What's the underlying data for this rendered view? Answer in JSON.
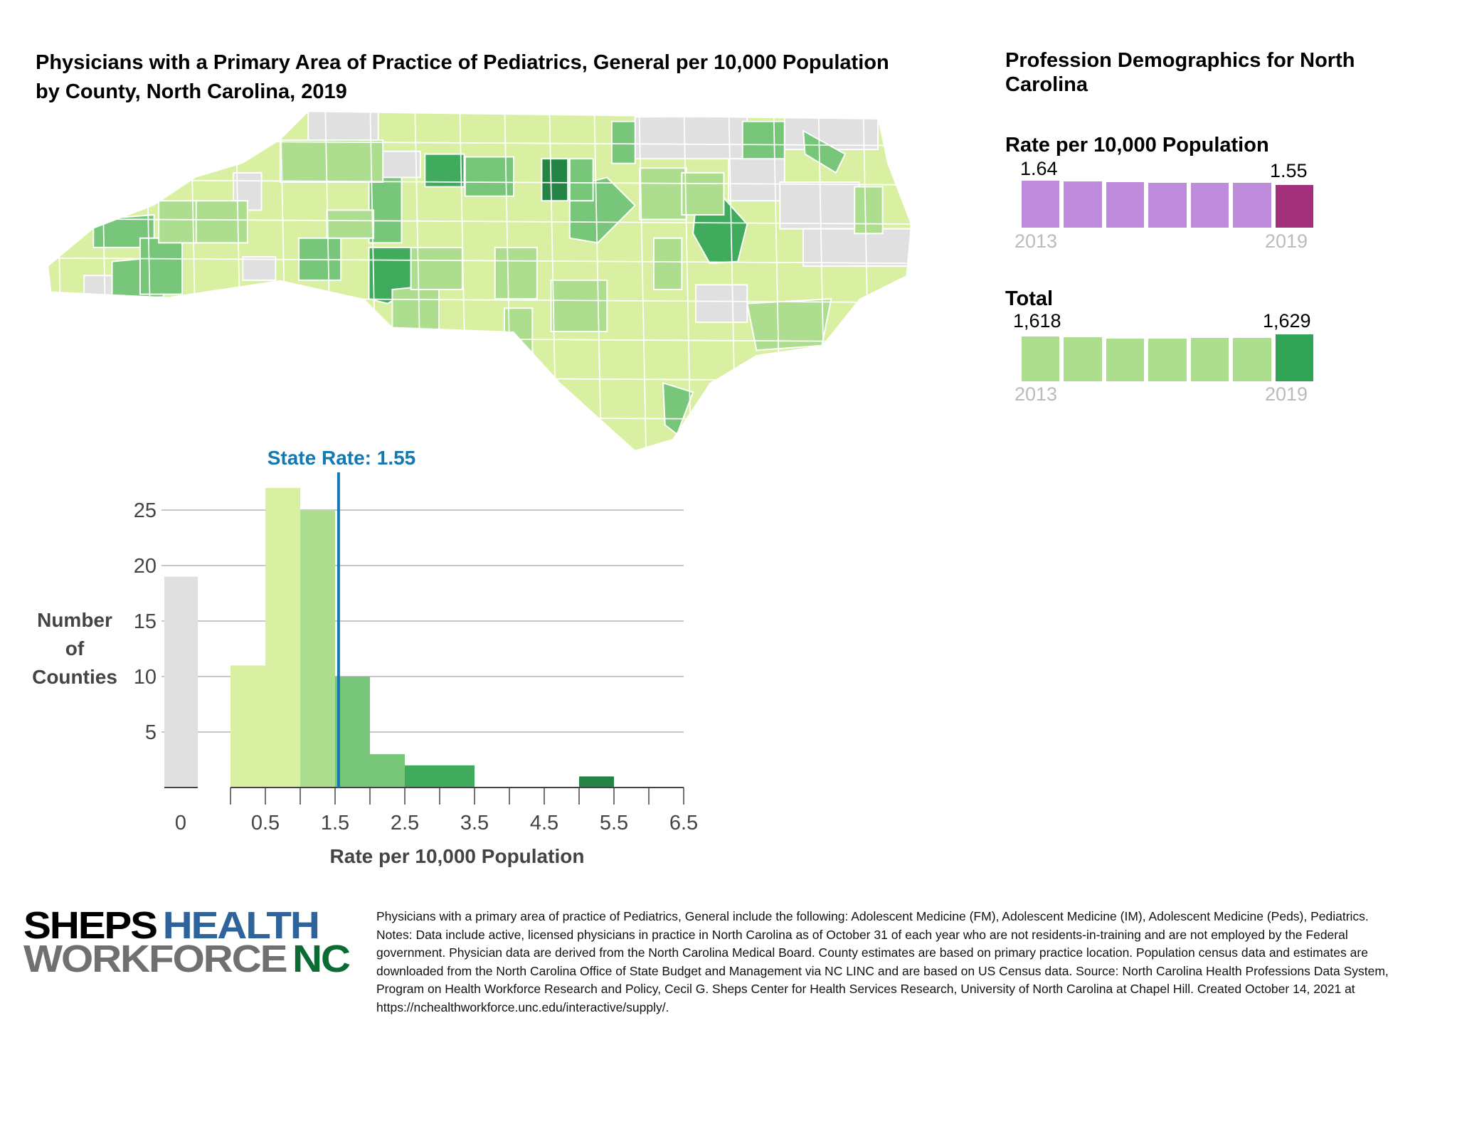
{
  "title": "Physicians with a Primary Area of Practice of Pediatrics, General per 10,000 Population by County, North Carolina, 2019",
  "right_panel": {
    "title": "Profession Demographics for North Carolina",
    "rate": {
      "heading": "Rate per 10,000 Population",
      "first_value": "1.64",
      "last_value": "1.55",
      "first_year": "2013",
      "last_year": "2019",
      "bar_color": "#bf8bdb",
      "highlight_color": "#a2307a",
      "relative_heights": [
        1.64,
        1.63,
        1.61,
        1.6,
        1.59,
        1.59,
        1.55
      ]
    },
    "total": {
      "heading": "Total",
      "first_value": "1,618",
      "last_value": "1,629",
      "first_year": "2013",
      "last_year": "2019",
      "bar_color": "#addd8e",
      "highlight_color": "#31a354",
      "relative_heights": [
        1618,
        1615,
        1608,
        1608,
        1610,
        1612,
        1629
      ]
    }
  },
  "chart_data": {
    "type": "bar",
    "title": "State Rate: 1.55",
    "state_rate": 1.55,
    "xlabel": "Rate per 10,000 Population",
    "ylabel": "Number of Counties",
    "ylabel_lines": [
      "Number",
      "of",
      "Counties"
    ],
    "yticks": [
      5,
      10,
      15,
      20,
      25
    ],
    "ylim": [
      0,
      27
    ],
    "zero_bin": {
      "label": "0",
      "count": 19,
      "color": "#e0e0e0"
    },
    "xticks": [
      "0.5",
      "1.5",
      "2.5",
      "3.5",
      "4.5",
      "5.5",
      "6.5"
    ],
    "xlim": [
      0,
      6.5
    ],
    "bins": [
      {
        "from": 0,
        "to": 0.5,
        "count": 11,
        "color": "#d9f0a3"
      },
      {
        "from": 0.5,
        "to": 1.0,
        "count": 27,
        "color": "#d9f0a3"
      },
      {
        "from": 1.0,
        "to": 1.5,
        "count": 25,
        "color": "#addd8e"
      },
      {
        "from": 1.5,
        "to": 2.0,
        "count": 10,
        "color": "#78c679"
      },
      {
        "from": 2.0,
        "to": 2.5,
        "count": 3,
        "color": "#78c679"
      },
      {
        "from": 2.5,
        "to": 3.0,
        "count": 2,
        "color": "#41ab5d"
      },
      {
        "from": 3.0,
        "to": 3.5,
        "count": 2,
        "color": "#41ab5d"
      },
      {
        "from": 3.5,
        "to": 4.0,
        "count": 0,
        "color": "#238443"
      },
      {
        "from": 4.0,
        "to": 4.5,
        "count": 0,
        "color": "#238443"
      },
      {
        "from": 4.5,
        "to": 5.0,
        "count": 0,
        "color": "#238443"
      },
      {
        "from": 5.0,
        "to": 5.5,
        "count": 1,
        "color": "#238443"
      }
    ],
    "state_rate_color": "#1479b3"
  },
  "logo": {
    "line1a": "SHEPS",
    "line1b": "HEALTH",
    "line2a": "WORKFORCE",
    "line2b": "NC"
  },
  "footnote": "Physicians with a primary area of practice of Pediatrics, General include the following: Adolescent Medicine (FM), Adolescent Medicine (IM), Adolescent Medicine (Peds), Pediatrics. Notes: Data include active, licensed physicians in practice in North Carolina as of October 31 of each year who are not residents-in-training and are not employed by the Federal government. Physician data are derived from the North Carolina Medical Board. County estimates are based on primary practice location. Population census data and estimates are downloaded from the North Carolina Office of State Budget and Management via NC LINC and are based on US Census data. Source: North Carolina Health Professions Data System, Program on Health Workforce Research and Policy, Cecil G. Sheps Center for Health Services Research, University of North Carolina at Chapel Hill. Created October 14, 2021 at https://nchealthworkforce.unc.edu/interactive/supply/."
}
